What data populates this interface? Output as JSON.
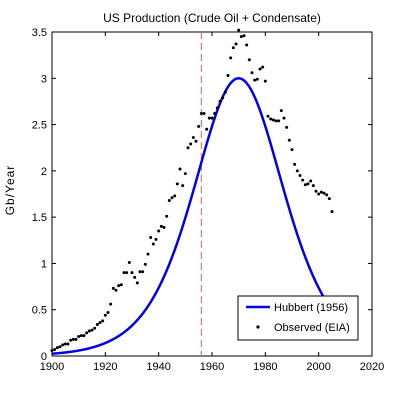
{
  "chart_data": {
    "type": "line",
    "title": "US Production (Crude Oil + Condensate)",
    "xlabel": "",
    "ylabel": "Gb/Year",
    "xlim": [
      1900,
      2020
    ],
    "ylim": [
      0,
      3.5
    ],
    "xticks": [
      1900,
      1920,
      1940,
      1960,
      1980,
      2000,
      2020
    ],
    "yticks": [
      0,
      0.5,
      1,
      1.5,
      2,
      2.5,
      3,
      3.5
    ],
    "xtick_labels": [
      "1900",
      "1920",
      "1940",
      "1960",
      "1980",
      "2000",
      "2020"
    ],
    "ytick_labels": [
      "0",
      "0.5",
      "1",
      "1.5",
      "2",
      "2.5",
      "3",
      "3.5"
    ],
    "vline": {
      "x": 1956,
      "color": "#e06060",
      "style": "dashed"
    },
    "legend_position": "bottom-right",
    "grid": false,
    "series": [
      {
        "name": "Hubbert (1956)",
        "kind": "line",
        "color": "#0000ee",
        "model": {
          "peak_year": 1970,
          "peak_value": 3.0,
          "logistic_s": 11.3
        },
        "x_range": [
          1900,
          2005
        ]
      },
      {
        "name": "Observed (EIA)",
        "kind": "scatter",
        "color": "#000000",
        "points": [
          [
            1900,
            0.06
          ],
          [
            1901,
            0.07
          ],
          [
            1902,
            0.09
          ],
          [
            1903,
            0.1
          ],
          [
            1904,
            0.12
          ],
          [
            1905,
            0.13
          ],
          [
            1906,
            0.13
          ],
          [
            1907,
            0.17
          ],
          [
            1908,
            0.18
          ],
          [
            1909,
            0.18
          ],
          [
            1910,
            0.21
          ],
          [
            1911,
            0.22
          ],
          [
            1912,
            0.22
          ],
          [
            1913,
            0.25
          ],
          [
            1914,
            0.27
          ],
          [
            1915,
            0.28
          ],
          [
            1916,
            0.3
          ],
          [
            1917,
            0.34
          ],
          [
            1918,
            0.36
          ],
          [
            1919,
            0.38
          ],
          [
            1920,
            0.44
          ],
          [
            1921,
            0.47
          ],
          [
            1922,
            0.56
          ],
          [
            1923,
            0.73
          ],
          [
            1924,
            0.71
          ],
          [
            1925,
            0.76
          ],
          [
            1926,
            0.77
          ],
          [
            1927,
            0.9
          ],
          [
            1928,
            0.9
          ],
          [
            1929,
            1.01
          ],
          [
            1930,
            0.9
          ],
          [
            1931,
            0.85
          ],
          [
            1932,
            0.79
          ],
          [
            1933,
            0.91
          ],
          [
            1934,
            0.91
          ],
          [
            1935,
            0.99
          ],
          [
            1936,
            1.1
          ],
          [
            1937,
            1.28
          ],
          [
            1938,
            1.21
          ],
          [
            1939,
            1.26
          ],
          [
            1940,
            1.35
          ],
          [
            1941,
            1.4
          ],
          [
            1942,
            1.39
          ],
          [
            1943,
            1.51
          ],
          [
            1944,
            1.68
          ],
          [
            1945,
            1.71
          ],
          [
            1946,
            1.73
          ],
          [
            1947,
            1.86
          ],
          [
            1948,
            2.02
          ],
          [
            1949,
            1.84
          ],
          [
            1950,
            1.97
          ],
          [
            1951,
            2.25
          ],
          [
            1952,
            2.29
          ],
          [
            1953,
            2.36
          ],
          [
            1954,
            2.32
          ],
          [
            1955,
            2.48
          ],
          [
            1956,
            2.62
          ],
          [
            1957,
            2.62
          ],
          [
            1958,
            2.45
          ],
          [
            1959,
            2.57
          ],
          [
            1960,
            2.57
          ],
          [
            1961,
            2.62
          ],
          [
            1962,
            2.68
          ],
          [
            1963,
            2.75
          ],
          [
            1964,
            2.79
          ],
          [
            1965,
            2.85
          ],
          [
            1966,
            3.03
          ],
          [
            1967,
            3.22
          ],
          [
            1968,
            3.33
          ],
          [
            1969,
            3.37
          ],
          [
            1970,
            3.52
          ],
          [
            1971,
            3.45
          ],
          [
            1972,
            3.46
          ],
          [
            1973,
            3.36
          ],
          [
            1974,
            3.2
          ],
          [
            1975,
            3.06
          ],
          [
            1976,
            2.98
          ],
          [
            1977,
            2.99
          ],
          [
            1978,
            3.1
          ],
          [
            1979,
            3.12
          ],
          [
            1980,
            2.97
          ],
          [
            1981,
            2.59
          ],
          [
            1982,
            2.56
          ],
          [
            1983,
            2.55
          ],
          [
            1984,
            2.54
          ],
          [
            1985,
            2.54
          ],
          [
            1986,
            2.65
          ],
          [
            1987,
            2.57
          ],
          [
            1988,
            2.47
          ],
          [
            1989,
            2.33
          ],
          [
            1990,
            2.23
          ],
          [
            1991,
            2.07
          ],
          [
            1992,
            2.0
          ],
          [
            1993,
            1.95
          ],
          [
            1994,
            1.9
          ],
          [
            1995,
            1.85
          ],
          [
            1996,
            1.86
          ],
          [
            1997,
            1.89
          ],
          [
            1998,
            1.84
          ],
          [
            1999,
            1.78
          ],
          [
            2000,
            1.75
          ],
          [
            2001,
            1.77
          ],
          [
            2002,
            1.76
          ],
          [
            2003,
            1.74
          ],
          [
            2004,
            1.7
          ],
          [
            2005,
            1.56
          ]
        ]
      }
    ]
  }
}
